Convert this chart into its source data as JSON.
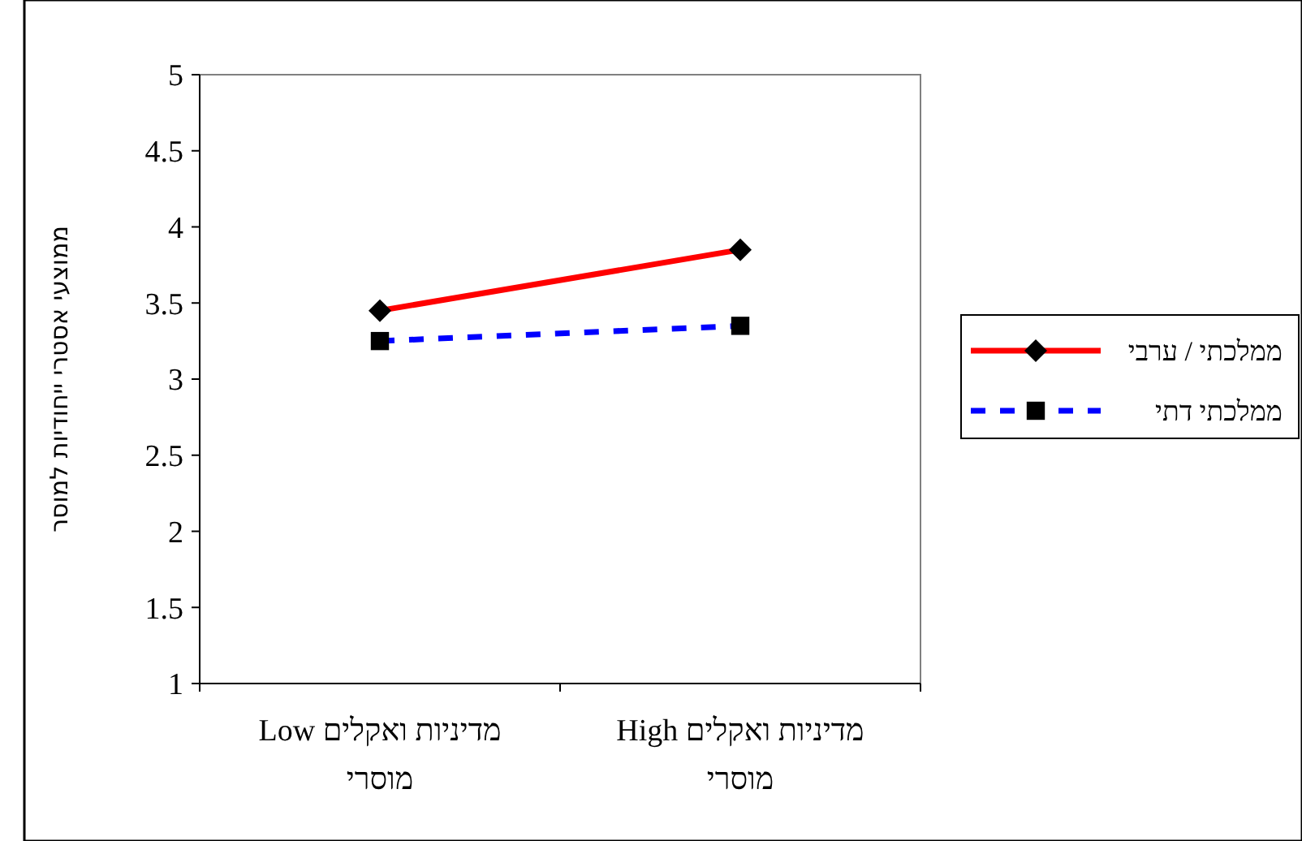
{
  "chart_data": {
    "type": "line",
    "ylabel": "ממוצעי אסטרי ייחודיות למוסר",
    "categories": [
      "מדיניות ואקלים Low מוסרי",
      "מדיניות ואקלים High מוסרי"
    ],
    "series": [
      {
        "name": "ממלכתי / ערבי",
        "color": "#ff0000",
        "values": [
          3.45,
          3.85
        ],
        "marker": "diamond",
        "line_style": "solid"
      },
      {
        "name": "ממלכתי דתי",
        "color": "#0000ff",
        "values": [
          3.25,
          3.35
        ],
        "marker": "square",
        "line_style": "dashed"
      }
    ],
    "ylim": [
      1,
      5
    ],
    "yticks": [
      1,
      1.5,
      2,
      2.5,
      3,
      3.5,
      4,
      4.5,
      5
    ],
    "grid": false,
    "legend": "right"
  }
}
